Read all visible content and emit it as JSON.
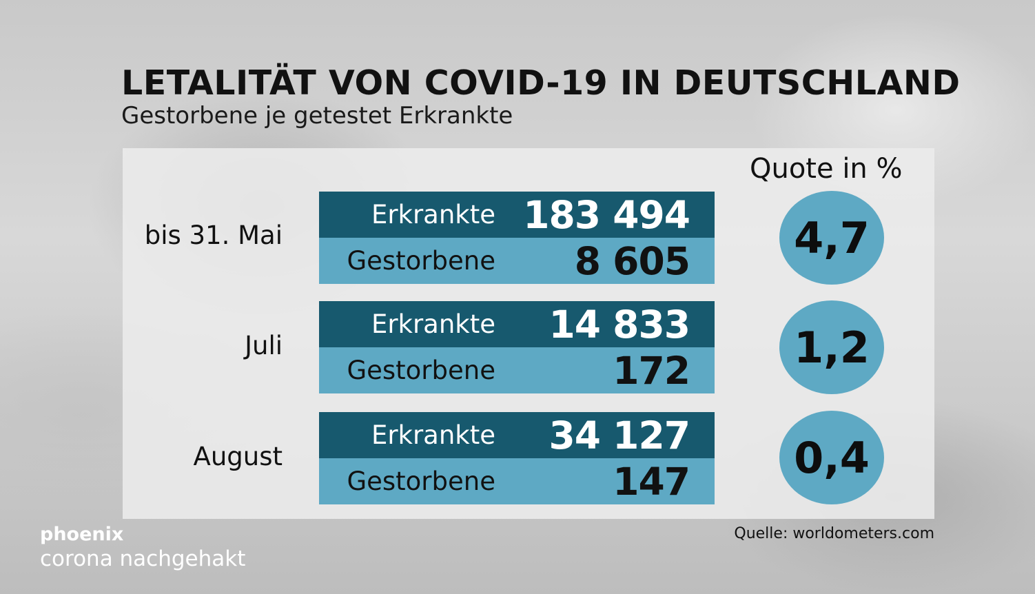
{
  "title": "LETALITÄT VON COVID-19 IN DEUTSCHLAND",
  "subtitle": "Gestorbene je getestet Erkrankte",
  "quote_header": "Quote in %",
  "rows": [
    {
      "period": "bis 31. Mai",
      "sick_label": "Erkrankte",
      "sick": "183 494",
      "dead_label": "Gestorbene",
      "dead": "8 605",
      "quote": "4,7"
    },
    {
      "period": "Juli",
      "sick_label": "Erkrankte",
      "sick": "14 833",
      "dead_label": "Gestorbene",
      "dead": "172",
      "quote": "1,2"
    },
    {
      "period": "August",
      "sick_label": "Erkrankte",
      "sick": "34 127",
      "dead_label": "Gestorbene",
      "dead": "147",
      "quote": "0,4"
    }
  ],
  "source": "Quelle: worldometers.com",
  "brand": "phoenix",
  "show": "corona nachgehakt",
  "colors": {
    "dark_band": "#17596e",
    "light_band": "#5ea9c4",
    "circle": "#5ea9c4"
  }
}
